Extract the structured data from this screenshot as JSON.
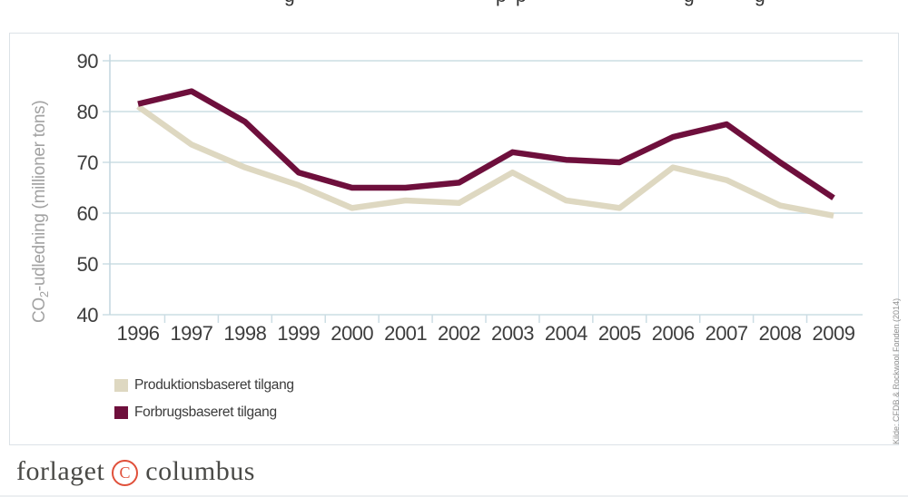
{
  "page": {
    "cropped_title_fragments": [
      "g",
      "p",
      "p",
      "g",
      "g"
    ],
    "source_note": "Kilde: CFDB & Rockwool Fonden (2014)",
    "logo": {
      "word1": "forlaget",
      "mark": "C",
      "word2": "columbus"
    }
  },
  "colors": {
    "production_line": "#ded8c1",
    "consumption_line": "#6e0f3c",
    "gridline": "#ccdde4",
    "axis_line": "#c2d6df",
    "tick_label": "#3d3d3d",
    "axis_title_text": "#a2a2a2",
    "legend_text": "#3b3b3b",
    "source_text": "#8f8f8f",
    "logo_text": "#4a4a47",
    "logo_mark": "#e0503a",
    "frame_border": "#dce2e7"
  },
  "chart_data": {
    "type": "line",
    "title": "",
    "xlabel": "",
    "ylabel": "CO2-udledning (millioner tons)",
    "ylabel_parts": {
      "prefix": "CO",
      "sub": "2",
      "rest": "-udledning (millioner tons)"
    },
    "categories": [
      "1996",
      "1997",
      "1998",
      "1999",
      "2000",
      "2001",
      "2002",
      "2003",
      "2004",
      "2005",
      "2006",
      "2007",
      "2008",
      "2009"
    ],
    "yticks": [
      40,
      50,
      60,
      70,
      80,
      90
    ],
    "ylim": [
      40,
      90
    ],
    "grid": "horizontal",
    "legend_position": "bottom-left inside plot frame",
    "series": [
      {
        "name": "Produktionsbaseret tilgang",
        "color": "#ded8c1",
        "values": [
          81,
          73.5,
          69,
          65.5,
          61,
          62.5,
          62,
          68,
          62.5,
          61,
          69,
          66.5,
          61.5,
          59.5
        ]
      },
      {
        "name": "Forbrugsbaseret tilgang",
        "color": "#6e0f3c",
        "values": [
          81.5,
          84,
          78,
          68,
          65,
          65,
          66,
          72,
          70.5,
          70,
          75,
          77.5,
          70,
          63
        ]
      }
    ]
  }
}
